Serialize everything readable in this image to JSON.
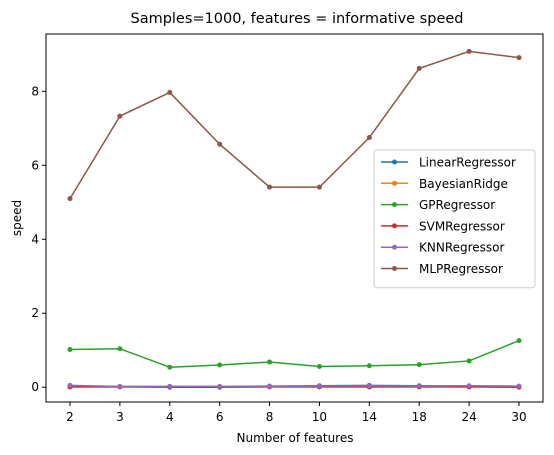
{
  "chart_data": {
    "type": "line",
    "title": "Samples=1000, features = informative speed",
    "xlabel": "Number of features",
    "ylabel": "speed",
    "categories": [
      "2",
      "3",
      "4",
      "6",
      "8",
      "10",
      "14",
      "18",
      "24",
      "30"
    ],
    "yticks": [
      0,
      2,
      4,
      6,
      8
    ],
    "ylim": [
      -0.4,
      9.55
    ],
    "grid": false,
    "legend_position": "center-right",
    "series": [
      {
        "name": "LinearRegressor",
        "color": "#1f77b4",
        "values": [
          0.03,
          0.02,
          0.02,
          0.02,
          0.03,
          0.04,
          0.05,
          0.04,
          0.03,
          0.02
        ]
      },
      {
        "name": "BayesianRidge",
        "color": "#ff7f0e",
        "values": [
          0.01,
          0.01,
          0.01,
          0.01,
          0.01,
          0.01,
          0.01,
          0.01,
          0.01,
          0.01
        ]
      },
      {
        "name": "GPRegressor",
        "color": "#2ca02c",
        "values": [
          1.02,
          1.04,
          0.54,
          0.6,
          0.68,
          0.56,
          0.58,
          0.61,
          0.71,
          1.26
        ]
      },
      {
        "name": "SVMRegressor",
        "color": "#d62728",
        "values": [
          0.01,
          0.01,
          0.0,
          0.0,
          0.01,
          0.01,
          0.01,
          0.01,
          0.01,
          0.0
        ]
      },
      {
        "name": "KNNRegressor",
        "color": "#9467bd",
        "values": [
          0.05,
          0.02,
          0.02,
          0.02,
          0.02,
          0.03,
          0.04,
          0.03,
          0.04,
          0.03
        ]
      },
      {
        "name": "MLPRegressor",
        "color": "#8c564b",
        "values": [
          5.1,
          7.33,
          7.97,
          6.57,
          5.41,
          5.41,
          6.75,
          8.62,
          9.08,
          8.91
        ]
      }
    ]
  }
}
